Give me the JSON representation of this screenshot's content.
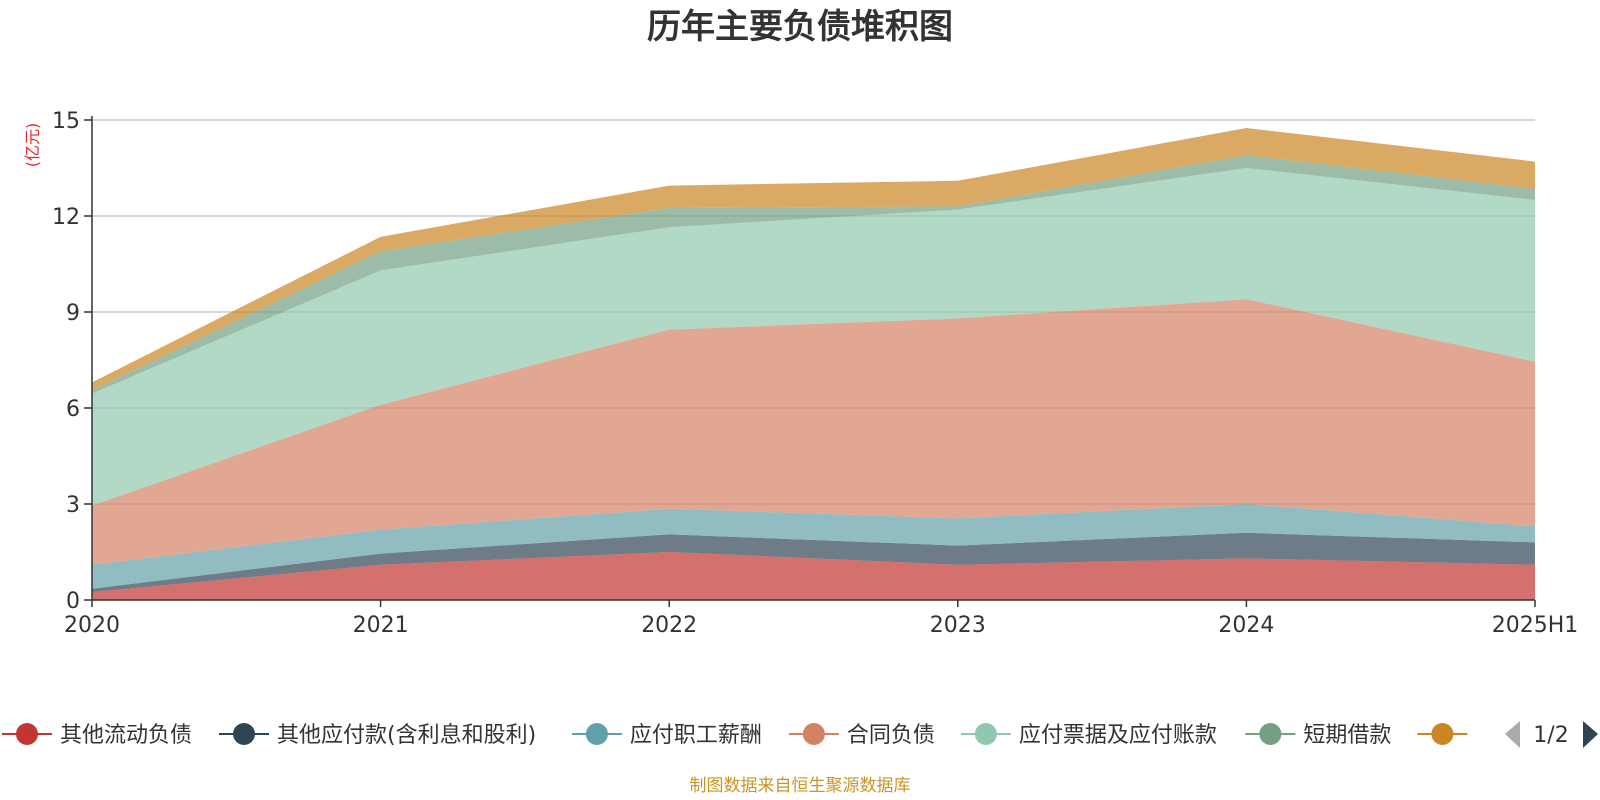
{
  "chart_data": {
    "type": "area",
    "stacked": true,
    "title": "历年主要负债堆积图",
    "unit_label": "(亿元)",
    "xlabel": "",
    "ylabel": "",
    "x": [
      "2020",
      "2021",
      "2022",
      "2023",
      "2024",
      "2025H1"
    ],
    "ylim": [
      0,
      15
    ],
    "yticks": [
      "0",
      "3",
      "6",
      "9",
      "12",
      "15"
    ],
    "grid": true,
    "legend_position": "bottom",
    "series": [
      {
        "name": "其他流动负债",
        "color": "#c23531",
        "values": [
          0.25,
          1.1,
          1.5,
          1.1,
          1.3,
          1.1
        ]
      },
      {
        "name": "其他应付款(含利息和股利)",
        "color": "#2f4554",
        "values": [
          0.1,
          0.35,
          0.55,
          0.6,
          0.8,
          0.7
        ]
      },
      {
        "name": "应付职工薪酬",
        "color": "#61a0a8",
        "values": [
          0.75,
          0.75,
          0.8,
          0.85,
          0.9,
          0.5
        ]
      },
      {
        "name": "合同负债",
        "color": "#d48265",
        "values": [
          1.85,
          3.9,
          5.6,
          6.25,
          6.4,
          5.15
        ]
      },
      {
        "name": "应付票据及应付账款",
        "color": "#91c7ae",
        "values": [
          3.5,
          4.2,
          3.2,
          3.4,
          4.1,
          5.05
        ]
      },
      {
        "name": "短期借款",
        "color": "#749f83",
        "values": [
          0.1,
          0.6,
          0.6,
          0.1,
          0.4,
          0.35
        ]
      },
      {
        "name": "",
        "color": "#ca8622",
        "values": [
          0.25,
          0.45,
          0.7,
          0.8,
          0.85,
          0.85
        ]
      }
    ]
  },
  "legend": {
    "pager_text": "1/2"
  },
  "source_note": "制图数据来自恒生聚源数据库"
}
